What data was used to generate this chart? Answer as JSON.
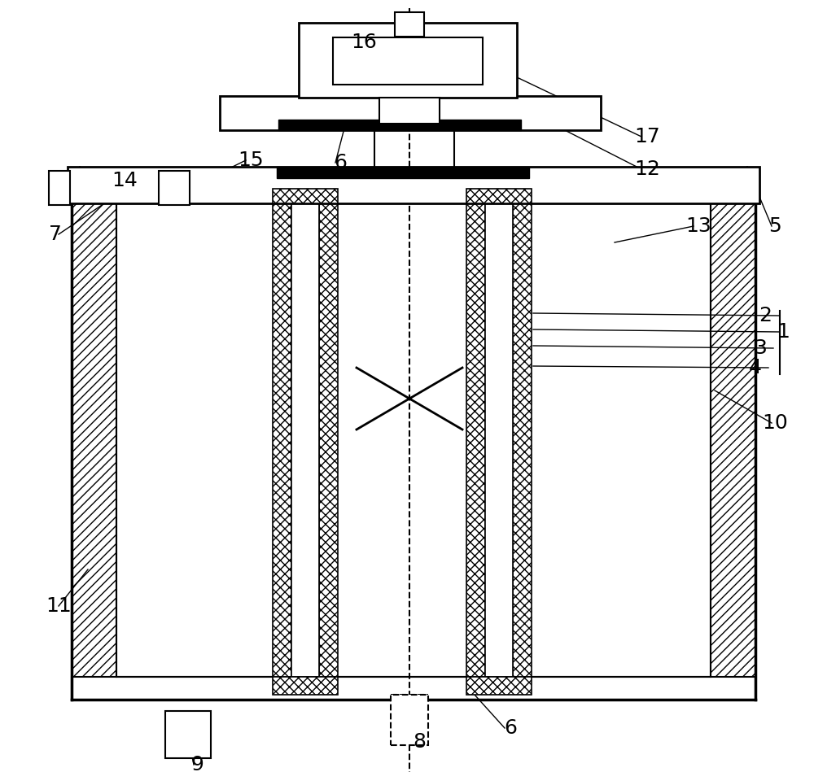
{
  "bg_color": "#ffffff",
  "lc": "#000000",
  "fig_w": 10.0,
  "fig_h": 9.49,
  "labels": [
    [
      "16",
      447,
      52
    ],
    [
      "17",
      795,
      168
    ],
    [
      "12",
      795,
      208
    ],
    [
      "6",
      418,
      200
    ],
    [
      "15",
      308,
      197
    ],
    [
      "14",
      153,
      222
    ],
    [
      "7",
      68,
      288
    ],
    [
      "5",
      952,
      278
    ],
    [
      "13",
      858,
      278
    ],
    [
      "2",
      940,
      388
    ],
    [
      "1",
      962,
      408
    ],
    [
      "3",
      934,
      428
    ],
    [
      "4",
      928,
      452
    ],
    [
      "10",
      952,
      520
    ],
    [
      "11",
      72,
      745
    ],
    [
      "6",
      627,
      895
    ],
    [
      "8",
      515,
      912
    ],
    [
      "9",
      242,
      940
    ]
  ]
}
